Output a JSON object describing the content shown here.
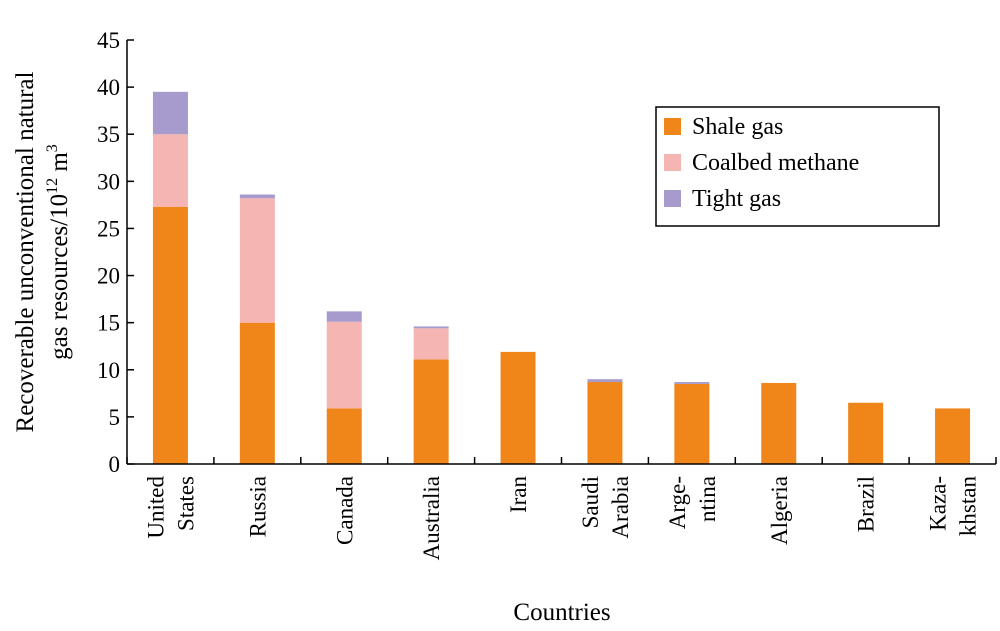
{
  "chart_data": {
    "type": "bar",
    "stacked": true,
    "xlabel": "Countries",
    "ylabel_line1": "Recoverable unconventional natural",
    "ylabel_line2_prefix": "gas resources/10",
    "ylabel_line2_exp": "12",
    "ylabel_line2_suffix": " m",
    "ylabel_line2_sup": "3",
    "ylim": [
      0,
      45
    ],
    "yticks": [
      0,
      5,
      10,
      15,
      20,
      25,
      30,
      35,
      40,
      45
    ],
    "legend_position": "top-right",
    "categories": [
      [
        "United",
        "States"
      ],
      [
        "Russia"
      ],
      [
        "Canada"
      ],
      [
        "Australia"
      ],
      [
        "Iran"
      ],
      [
        "Saudi",
        "Arabia"
      ],
      [
        "Arge-",
        "ntina"
      ],
      [
        "Algeria"
      ],
      [
        "Brazil"
      ],
      [
        "Kaza-",
        "khstan"
      ]
    ],
    "series": [
      {
        "name": "Shale gas",
        "color": "#F0861A",
        "values": [
          27.3,
          15.0,
          5.9,
          11.1,
          11.9,
          8.7,
          8.5,
          8.6,
          6.5,
          5.9
        ]
      },
      {
        "name": "Coalbed methane",
        "color": "#F5B5B2",
        "values": [
          7.7,
          13.2,
          9.2,
          3.3,
          0,
          0,
          0,
          0,
          0,
          0
        ]
      },
      {
        "name": "Tight gas",
        "color": "#A69BCC",
        "values": [
          4.5,
          0.4,
          1.1,
          0.2,
          0,
          0.3,
          0.2,
          0,
          0,
          0
        ]
      }
    ]
  }
}
